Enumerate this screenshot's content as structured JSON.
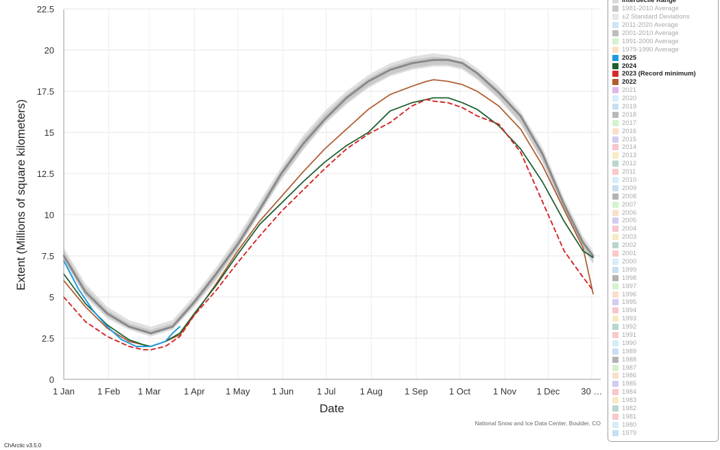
{
  "app": {
    "version": "ChArctic v3.5.0"
  },
  "credit": "National Snow and Ice Data Center, Boulder, CO",
  "chart_data": {
    "type": "line",
    "title": "",
    "xlabel": "Date",
    "ylabel": "Extent (Millions of square kilometers)",
    "xlim": [
      0,
      365
    ],
    "ylim": [
      0,
      22.5
    ],
    "yticks": [
      0,
      2.5,
      5,
      7.5,
      10,
      12.5,
      15,
      17.5,
      20,
      22.5
    ],
    "ytick_labels": [
      "0",
      "2.5",
      "5",
      "7.5",
      "10",
      "12.5",
      "15",
      "17.5",
      "20",
      "22.5"
    ],
    "xticks": [
      0,
      31,
      59,
      90,
      120,
      151,
      181,
      212,
      243,
      273,
      304,
      334,
      364
    ],
    "xtick_labels": [
      "1 Jan",
      "1 Feb",
      "1 Mar",
      "1 Apr",
      "1 May",
      "1 Jun",
      "1 Jul",
      "1 Aug",
      "1 Sep",
      "1 Oct",
      "1 Nov",
      "1 Dec",
      "30 …"
    ],
    "grid": true,
    "legend_position": "right",
    "colors": {
      "interdecile": "#e0e0e0",
      "stddev": "#c9c9c9",
      "avg_1981_2010": "#8a8a8a",
      "y2025": "#1e9be0",
      "y2024": "#1d5e2f",
      "y2023": "#d42a2a",
      "y2022": "#b05e31"
    },
    "bands": [
      {
        "name": "Interdecile Range",
        "x": [
          0,
          15,
          30,
          45,
          60,
          75,
          90,
          105,
          120,
          135,
          150,
          165,
          180,
          195,
          210,
          225,
          240,
          255,
          265,
          275,
          285,
          300,
          315,
          330,
          345,
          358,
          365
        ],
        "low": [
          7.2,
          5.0,
          3.7,
          3.0,
          2.6,
          3.0,
          4.4,
          6.0,
          7.9,
          10.0,
          12.1,
          13.9,
          15.5,
          16.7,
          17.7,
          18.4,
          18.8,
          19.0,
          19.0,
          18.8,
          18.2,
          17.0,
          15.5,
          13.2,
          10.2,
          7.9,
          7.0
        ],
        "high": [
          8.0,
          5.8,
          4.4,
          3.6,
          3.2,
          3.6,
          5.1,
          6.8,
          8.7,
          10.8,
          12.9,
          14.8,
          16.3,
          17.5,
          18.5,
          19.2,
          19.6,
          19.8,
          19.7,
          19.5,
          18.9,
          17.8,
          16.3,
          14.1,
          11.0,
          8.7,
          7.8
        ]
      },
      {
        "name": "±2 Standard Deviations",
        "x": [
          0,
          15,
          30,
          45,
          60,
          75,
          90,
          105,
          120,
          135,
          150,
          165,
          180,
          195,
          210,
          225,
          240,
          255,
          265,
          275,
          285,
          300,
          315,
          330,
          345,
          358,
          365
        ],
        "low": [
          7.3,
          5.1,
          3.8,
          3.1,
          2.7,
          3.1,
          4.5,
          6.1,
          8.0,
          10.1,
          12.2,
          14.0,
          15.6,
          16.8,
          17.8,
          18.5,
          18.9,
          19.1,
          19.1,
          18.9,
          18.3,
          17.1,
          15.6,
          13.3,
          10.3,
          8.0,
          7.1
        ],
        "high": [
          7.8,
          5.6,
          4.2,
          3.4,
          3.0,
          3.4,
          4.9,
          6.6,
          8.5,
          10.6,
          12.7,
          14.6,
          16.1,
          17.3,
          18.3,
          19.0,
          19.4,
          19.6,
          19.5,
          19.3,
          18.7,
          17.6,
          16.1,
          13.9,
          10.8,
          8.5,
          7.6
        ]
      }
    ],
    "series": [
      {
        "name": "1981-2010 Average",
        "dash": "solid",
        "width": 3,
        "x": [
          0,
          15,
          30,
          45,
          60,
          75,
          90,
          105,
          120,
          135,
          150,
          165,
          180,
          195,
          210,
          225,
          240,
          255,
          265,
          275,
          285,
          300,
          315,
          330,
          345,
          358,
          365
        ],
        "y": [
          7.5,
          5.3,
          4.0,
          3.2,
          2.8,
          3.2,
          4.7,
          6.4,
          8.2,
          10.3,
          12.5,
          14.3,
          15.8,
          17.1,
          18.1,
          18.8,
          19.2,
          19.4,
          19.4,
          19.2,
          18.6,
          17.4,
          16.0,
          13.7,
          10.6,
          8.3,
          7.5
        ]
      },
      {
        "name": "2025",
        "dash": "solid",
        "width": 2,
        "x": [
          0,
          10,
          20,
          30,
          40,
          50,
          60,
          70,
          75,
          80
        ],
        "y": [
          7.2,
          5.5,
          4.2,
          3.2,
          2.4,
          2.0,
          2.0,
          2.3,
          2.8,
          3.2
        ]
      },
      {
        "name": "2024",
        "dash": "solid",
        "width": 1.8,
        "x": [
          0,
          15,
          30,
          45,
          55,
          60,
          70,
          80,
          90,
          105,
          120,
          135,
          150,
          165,
          180,
          195,
          210,
          225,
          240,
          250,
          255,
          265,
          275,
          285,
          300,
          315,
          330,
          345,
          358,
          365
        ],
        "y": [
          6.4,
          4.6,
          3.3,
          2.4,
          2.1,
          2.0,
          2.3,
          2.8,
          4.0,
          5.7,
          7.6,
          9.4,
          10.7,
          12.0,
          13.2,
          14.2,
          15.0,
          16.3,
          16.8,
          17.0,
          17.1,
          17.1,
          16.8,
          16.4,
          15.4,
          14.0,
          12.0,
          9.6,
          7.8,
          7.4
        ]
      },
      {
        "name": "2023 (Record minimum)",
        "dash": "dashed",
        "width": 2,
        "x": [
          0,
          15,
          30,
          45,
          55,
          60,
          70,
          80,
          90,
          105,
          120,
          135,
          150,
          165,
          180,
          195,
          210,
          225,
          240,
          250,
          255,
          265,
          275,
          285,
          300,
          315,
          330,
          345,
          358,
          365
        ],
        "y": [
          5.0,
          3.5,
          2.6,
          2.0,
          1.8,
          1.8,
          2.0,
          2.6,
          3.9,
          5.4,
          7.1,
          8.7,
          10.2,
          11.5,
          12.8,
          14.0,
          14.9,
          15.6,
          16.6,
          17.0,
          16.9,
          16.8,
          16.5,
          16.0,
          15.5,
          13.8,
          10.8,
          7.8,
          6.2,
          5.4
        ]
      },
      {
        "name": "2022",
        "dash": "solid",
        "width": 1.8,
        "x": [
          0,
          15,
          30,
          45,
          55,
          60,
          70,
          80,
          90,
          105,
          120,
          135,
          150,
          165,
          180,
          195,
          210,
          225,
          240,
          250,
          255,
          265,
          275,
          285,
          300,
          315,
          330,
          345,
          358,
          365
        ],
        "y": [
          6.0,
          4.4,
          3.1,
          2.3,
          2.1,
          2.0,
          2.3,
          2.7,
          3.9,
          5.8,
          7.8,
          9.6,
          11.1,
          12.6,
          14.0,
          15.2,
          16.4,
          17.3,
          17.8,
          18.1,
          18.2,
          18.1,
          17.9,
          17.5,
          16.6,
          15.2,
          13.0,
          10.3,
          8.0,
          5.2
        ]
      }
    ]
  },
  "legend": {
    "items": [
      {
        "label": "Interdecile Range",
        "color": "#d9d9d9",
        "active": true
      },
      {
        "label": "1981-2010 Average",
        "color": "#c8c8c8",
        "active": false
      },
      {
        "label": "±2 Standard Deviations",
        "color": "#e7e7e7",
        "active": false
      },
      {
        "label": "2011-2020 Average",
        "color": "#cfe4f5",
        "active": false
      },
      {
        "label": "2001-2010 Average",
        "color": "#bdbdbd",
        "active": false
      },
      {
        "label": "1991-2000 Average",
        "color": "#d5f2cf",
        "active": false
      },
      {
        "label": "1979-1990 Average",
        "color": "#f9e0c3",
        "active": false
      },
      {
        "label": "2025",
        "color": "#1e9be0",
        "active": true
      },
      {
        "label": "2024",
        "color": "#1d5e2f",
        "active": true
      },
      {
        "label": "2023 (Record minimum)",
        "color": "#d42a2a",
        "active": true
      },
      {
        "label": "2022",
        "color": "#b05e31",
        "active": true
      },
      {
        "label": "2021",
        "color": "#e1b6e8",
        "active": false
      },
      {
        "label": "2020",
        "color": "#d6ecf8",
        "active": false
      },
      {
        "label": "2019",
        "color": "#c8dff3",
        "active": false
      },
      {
        "label": "2018",
        "color": "#b9b9b9",
        "active": false
      },
      {
        "label": "2017",
        "color": "#d5f2cf",
        "active": false
      },
      {
        "label": "2016",
        "color": "#fadfca",
        "active": false
      },
      {
        "label": "2015",
        "color": "#d1cdf0",
        "active": false
      },
      {
        "label": "2014",
        "color": "#f8c6cb",
        "active": false
      },
      {
        "label": "2013",
        "color": "#f6eac4",
        "active": false
      },
      {
        "label": "2012",
        "color": "#b9d6cf",
        "active": false
      },
      {
        "label": "2011",
        "color": "#f9c9c9",
        "active": false
      },
      {
        "label": "2010",
        "color": "#d6ecf8",
        "active": false
      },
      {
        "label": "2009",
        "color": "#c8dff3",
        "active": false
      },
      {
        "label": "2008",
        "color": "#b3b3b3",
        "active": false
      },
      {
        "label": "2007",
        "color": "#d5f2cf",
        "active": false
      },
      {
        "label": "2006",
        "color": "#fadfca",
        "active": false
      },
      {
        "label": "2005",
        "color": "#d1cdf0",
        "active": false
      },
      {
        "label": "2004",
        "color": "#f8c6cb",
        "active": false
      },
      {
        "label": "2003",
        "color": "#f6eac4",
        "active": false
      },
      {
        "label": "2002",
        "color": "#b9d6cf",
        "active": false
      },
      {
        "label": "2001",
        "color": "#f9c9c9",
        "active": false
      },
      {
        "label": "2000",
        "color": "#d6ecf8",
        "active": false
      },
      {
        "label": "1999",
        "color": "#c8dff3",
        "active": false
      },
      {
        "label": "1998",
        "color": "#b3b3b3",
        "active": false
      },
      {
        "label": "1997",
        "color": "#d5f2cf",
        "active": false
      },
      {
        "label": "1996",
        "color": "#fadfca",
        "active": false
      },
      {
        "label": "1995",
        "color": "#d1cdf0",
        "active": false
      },
      {
        "label": "1994",
        "color": "#f8c6cb",
        "active": false
      },
      {
        "label": "1993",
        "color": "#f6eac4",
        "active": false
      },
      {
        "label": "1992",
        "color": "#b9d6cf",
        "active": false
      },
      {
        "label": "1991",
        "color": "#f9c9c9",
        "active": false
      },
      {
        "label": "1990",
        "color": "#d6ecf8",
        "active": false
      },
      {
        "label": "1989",
        "color": "#c8dff3",
        "active": false
      },
      {
        "label": "1988",
        "color": "#b3b3b3",
        "active": false
      },
      {
        "label": "1987",
        "color": "#d5f2cf",
        "active": false
      },
      {
        "label": "1986",
        "color": "#fadfca",
        "active": false
      },
      {
        "label": "1985",
        "color": "#d1cdf0",
        "active": false
      },
      {
        "label": "1984",
        "color": "#f8c6cb",
        "active": false
      },
      {
        "label": "1983",
        "color": "#f6eac4",
        "active": false
      },
      {
        "label": "1982",
        "color": "#b9d6cf",
        "active": false
      },
      {
        "label": "1981",
        "color": "#f9c9c9",
        "active": false
      },
      {
        "label": "1980",
        "color": "#d6ecf8",
        "active": false
      },
      {
        "label": "1979",
        "color": "#c8dff3",
        "active": false
      }
    ]
  }
}
